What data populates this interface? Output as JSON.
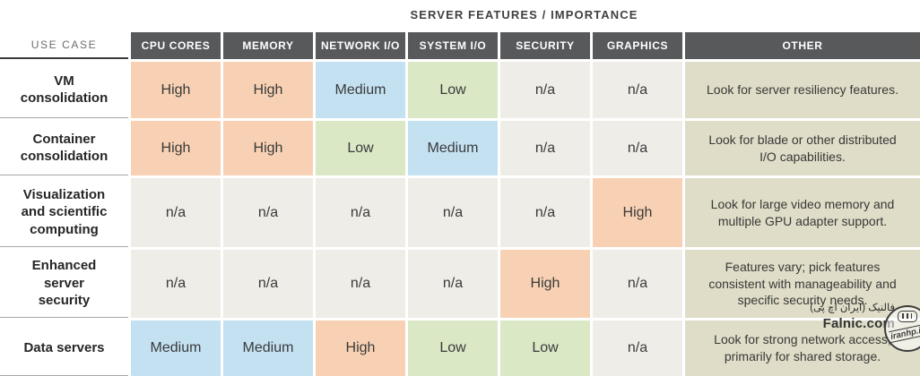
{
  "title": "SERVER FEATURES / IMPORTANCE",
  "table": {
    "use_case_header": "USE CASE",
    "columns": [
      "CPU CORES",
      "MEMORY",
      "NETWORK I/O",
      "SYSTEM I/O",
      "SECURITY",
      "GRAPHICS",
      "OTHER"
    ],
    "rows": [
      {
        "use_case": "VM consolidation",
        "values": {
          "cpu_cores": "High",
          "memory": "High",
          "network_io": "Medium",
          "system_io": "Low",
          "security": "n/a",
          "graphics": "n/a"
        },
        "other": "Look for server resiliency features."
      },
      {
        "use_case": "Container consolidation",
        "values": {
          "cpu_cores": "High",
          "memory": "High",
          "network_io": "Low",
          "system_io": "Medium",
          "security": "n/a",
          "graphics": "n/a"
        },
        "other": "Look for blade or other distributed I/O capabilities."
      },
      {
        "use_case": "Visualization and scientific computing",
        "values": {
          "cpu_cores": "n/a",
          "memory": "n/a",
          "network_io": "n/a",
          "system_io": "n/a",
          "security": "n/a",
          "graphics": "High"
        },
        "other": "Look for large video memory and multiple GPU adapter support."
      },
      {
        "use_case": "Enhanced server security",
        "values": {
          "cpu_cores": "n/a",
          "memory": "n/a",
          "network_io": "n/a",
          "system_io": "n/a",
          "security": "High",
          "graphics": "n/a"
        },
        "other": "Features vary; pick features consistent with manageability and specific security needs."
      },
      {
        "use_case": "Data servers",
        "values": {
          "cpu_cores": "Medium",
          "memory": "Medium",
          "network_io": "High",
          "system_io": "Low",
          "security": "Low",
          "graphics": "n/a"
        },
        "other": "Look for strong network access, primarily for shared storage."
      }
    ]
  },
  "colors": {
    "header_bg": "#58595b",
    "high": "#f8d1b4",
    "medium": "#c4e1f2",
    "low": "#dae8c6",
    "na": "#efede8",
    "other_column": "#dfddc7"
  },
  "watermark": {
    "line_fa": "فالنیک (ایران اچ پی)",
    "site": "Falnic.com",
    "stamp_text": "iranhp.ir"
  }
}
